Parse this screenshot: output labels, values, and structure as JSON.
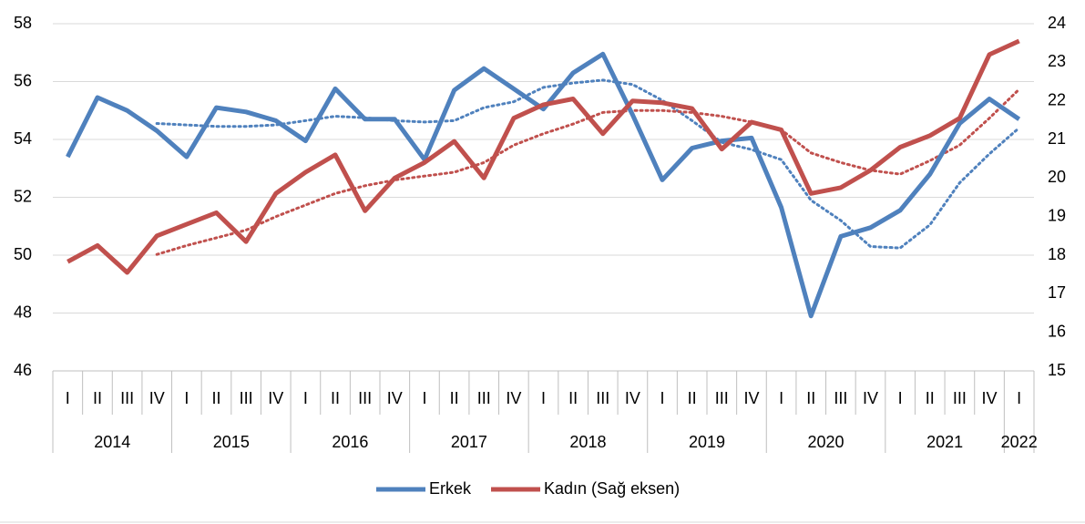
{
  "chart_data": {
    "type": "line",
    "categories": [
      "I",
      "II",
      "III",
      "IV",
      "I",
      "II",
      "III",
      "IV",
      "I",
      "II",
      "III",
      "IV",
      "I",
      "II",
      "III",
      "IV",
      "I",
      "II",
      "III",
      "IV",
      "I",
      "II",
      "III",
      "IV",
      "I",
      "II",
      "III",
      "IV",
      "I",
      "II",
      "III",
      "IV",
      "I"
    ],
    "years": [
      "2014",
      "2015",
      "2016",
      "2017",
      "2018",
      "2019",
      "2020",
      "2021",
      "2022"
    ],
    "series": [
      {
        "name": "Erkek",
        "color": "#4f81bd",
        "style": "solid",
        "values": [
          53.4,
          55.45,
          55.0,
          54.3,
          53.4,
          55.1,
          54.95,
          54.65,
          53.95,
          55.75,
          54.7,
          54.7,
          53.3,
          55.7,
          56.45,
          55.75,
          55.05,
          56.3,
          56.95,
          54.85,
          52.6,
          53.7,
          53.95,
          54.05,
          51.65,
          47.9,
          50.65,
          50.95,
          51.55,
          52.8,
          54.55,
          55.4,
          54.7
        ]
      },
      {
        "name": "Kadın (Sağ eksen)",
        "color": "#c0504d",
        "style": "solid",
        "axis": "y2",
        "values": [
          17.83,
          18.25,
          17.55,
          18.5,
          18.8,
          19.1,
          18.35,
          19.6,
          20.15,
          20.6,
          19.15,
          20.0,
          20.4,
          20.95,
          20.0,
          21.55,
          21.9,
          22.05,
          21.15,
          22.0,
          21.95,
          21.8,
          20.75,
          21.45,
          21.25,
          19.6,
          19.75,
          20.2,
          20.8,
          21.1,
          21.55,
          23.2,
          23.55
        ]
      },
      {
        "color": "#4f81bd",
        "style": "dotted",
        "values": [
          null,
          null,
          null,
          54.55,
          54.5,
          54.45,
          54.45,
          54.5,
          54.65,
          54.8,
          54.75,
          54.65,
          54.6,
          54.65,
          55.1,
          55.3,
          55.8,
          55.95,
          56.05,
          55.9,
          55.35,
          54.65,
          53.9,
          53.65,
          53.3,
          51.9,
          51.2,
          50.3,
          50.25,
          51.05,
          52.5,
          53.5,
          54.4
        ]
      },
      {
        "color": "#c0504d",
        "style": "dotted",
        "axis": "y2",
        "values": [
          null,
          null,
          null,
          18.02,
          18.25,
          18.45,
          18.65,
          19.0,
          19.3,
          19.6,
          19.8,
          19.95,
          20.05,
          20.15,
          20.4,
          20.85,
          21.15,
          21.4,
          21.7,
          21.75,
          21.75,
          21.7,
          21.6,
          21.45,
          21.25,
          20.65,
          20.4,
          20.2,
          20.1,
          20.45,
          20.85,
          21.55,
          22.3
        ]
      }
    ],
    "ylim": [
      46,
      58
    ],
    "yticks": [
      46,
      48,
      50,
      52,
      54,
      56,
      58
    ],
    "y2lim": [
      15,
      24
    ],
    "y2ticks": [
      15,
      16,
      17,
      18,
      19,
      20,
      21,
      22,
      23,
      24
    ],
    "grid": true,
    "legend": "bottom"
  }
}
